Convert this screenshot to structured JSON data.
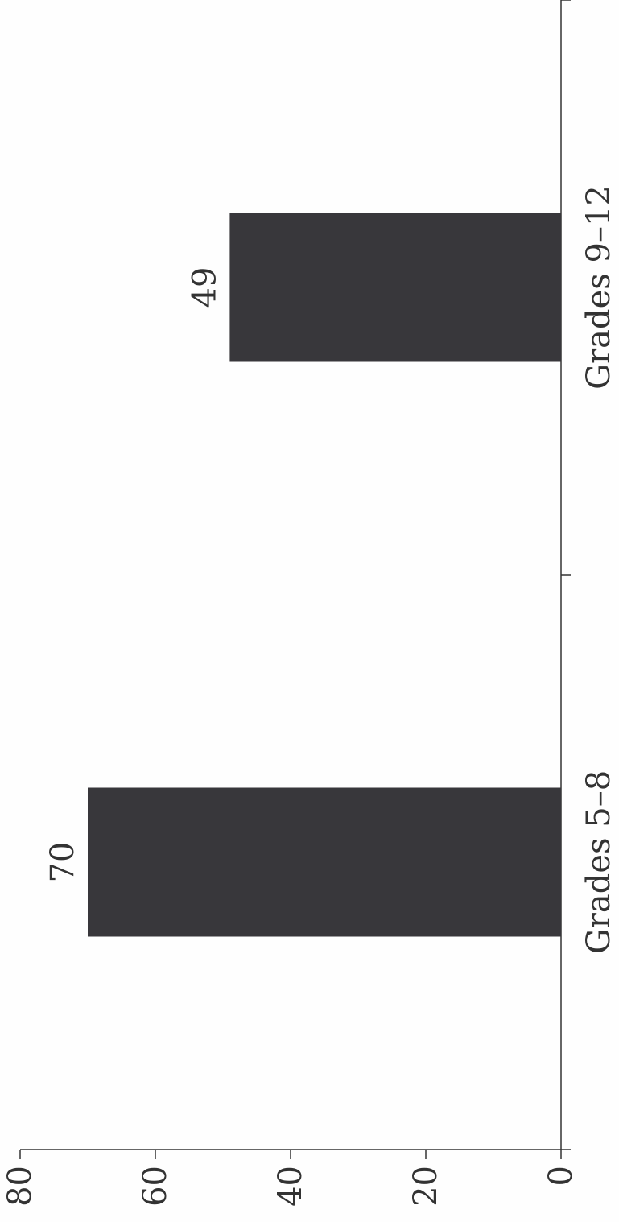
{
  "chart_data": {
    "type": "bar",
    "orientation": "rotated-90",
    "categories": [
      "Grades 5–8",
      "Grades 9–12"
    ],
    "values": [
      70,
      49
    ],
    "data_labels": [
      "70",
      "49"
    ],
    "ylim": [
      0,
      80
    ],
    "yticks": [
      0,
      20,
      40,
      60,
      80
    ],
    "ytick_labels": [
      "0",
      "20",
      "40",
      "60",
      "80"
    ],
    "bar_color": "#38373b",
    "axis_color": "#333333",
    "grid": false,
    "legend": "none",
    "title": "",
    "xlabel": "",
    "ylabel": ""
  }
}
